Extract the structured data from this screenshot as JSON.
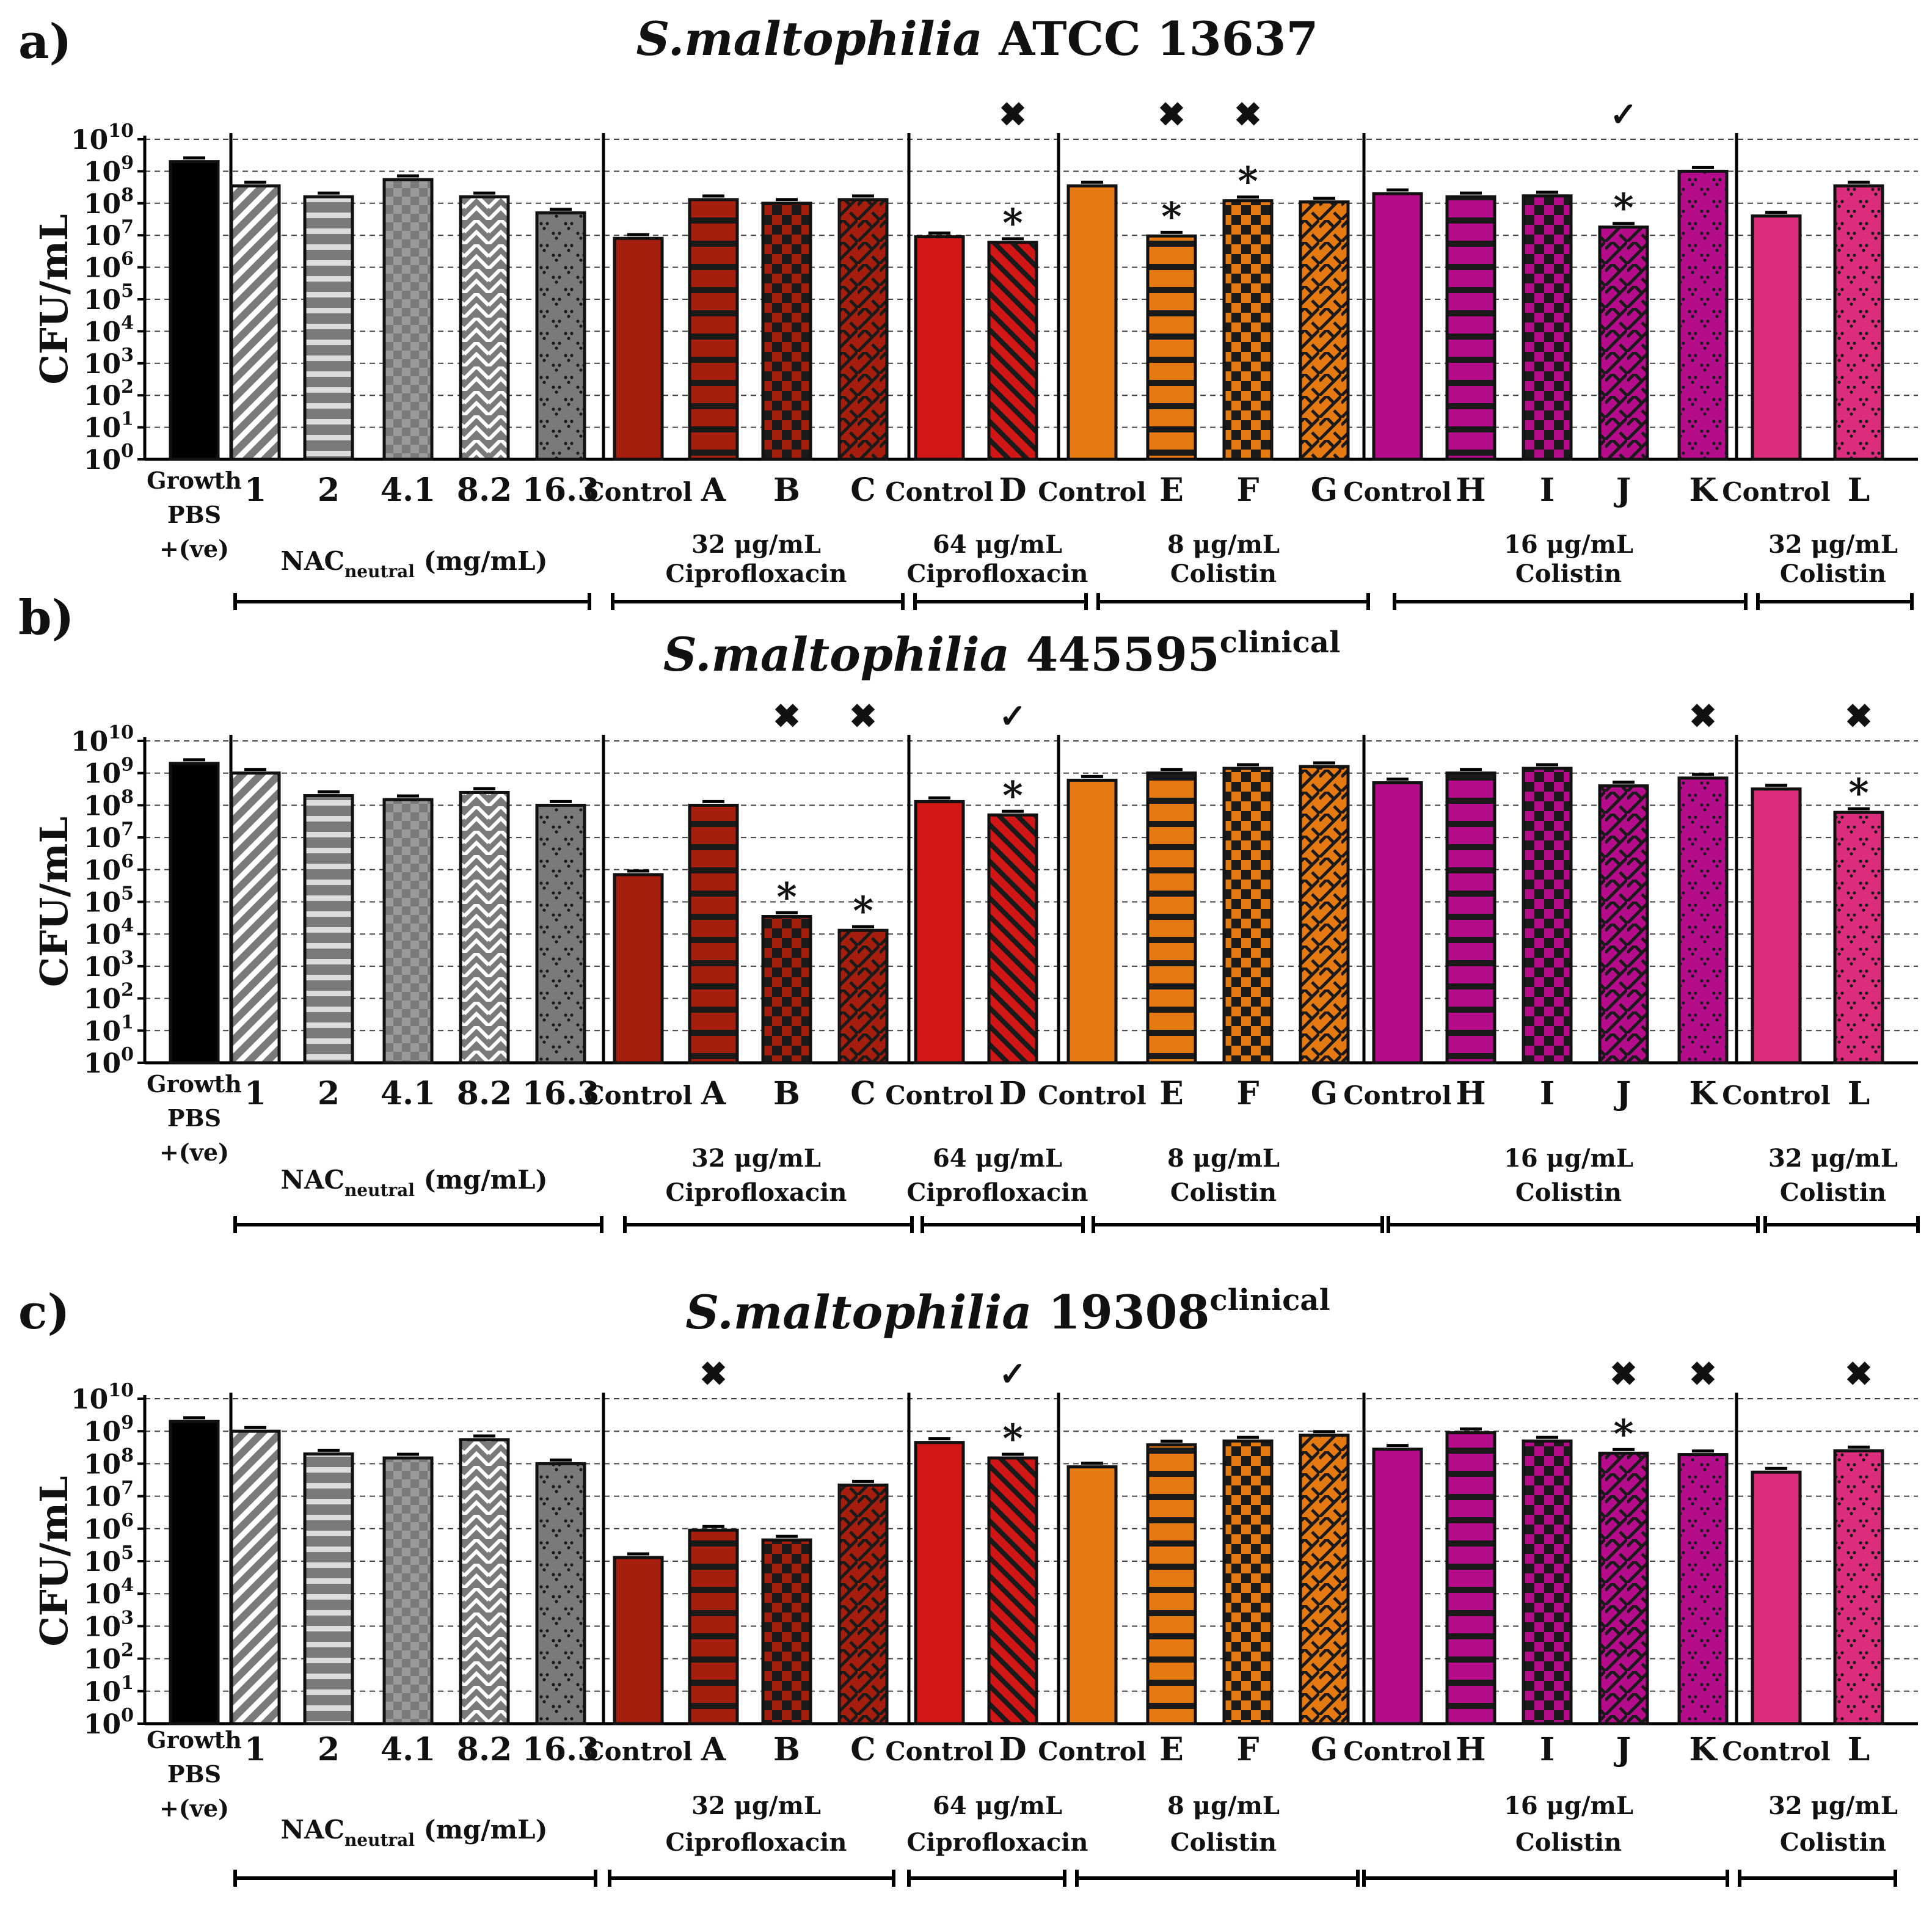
{
  "panels": [
    {
      "panel_label": "a)",
      "title_species": "S.maltophilia",
      "title_strain": "ATCC 13637",
      "title_sup": ""
    },
    {
      "panel_label": "b)",
      "title_species": "S.maltophilia",
      "title_strain": "445595",
      "title_sup": "clinical"
    },
    {
      "panel_label": "c)",
      "title_species": "S.maltophilia",
      "title_strain": "19308",
      "title_sup": "clinical"
    }
  ],
  "chart_data": [
    {
      "type": "bar",
      "ylabel": "CFU/mL",
      "yscale": "log10",
      "ylim": [
        1,
        10000000000
      ],
      "ytick_exponents": [
        0,
        1,
        2,
        3,
        4,
        5,
        6,
        7,
        8,
        9,
        10
      ],
      "ytick_base": "10",
      "categories": [
        "Growth PBS +(ve)",
        "1",
        "2",
        "4.1",
        "8.2",
        "16.3",
        "Control",
        "A",
        "B",
        "C",
        "Control",
        "D",
        "Control",
        "E",
        "F",
        "G",
        "Control",
        "H",
        "I",
        "J",
        "K",
        "Control",
        "L"
      ],
      "values": [
        2000000000,
        350000000,
        160000000,
        550000000,
        160000000,
        50000000,
        8000000,
        130000000,
        100000000,
        130000000,
        9000000,
        6000000,
        350000000,
        9500000,
        120000000,
        110000000,
        200000000,
        160000000,
        170000000,
        18000000,
        1000000000,
        40000000,
        350000000
      ],
      "significance_star": [
        11,
        13,
        14,
        19
      ],
      "markers": [
        {
          "index": 11,
          "symbol": "✖"
        },
        {
          "index": 13,
          "symbol": "✖"
        },
        {
          "index": 14,
          "symbol": "✖"
        },
        {
          "index": 19,
          "symbol": "✓"
        }
      ],
      "groups": [
        {
          "label_line1": "NAC",
          "label_sub": "neutral",
          "label_rest": " (mg/mL)",
          "label_line2": ""
        },
        {
          "label_line1": "32 μg/mL",
          "label_sub": "",
          "label_rest": "",
          "label_line2": "Ciprofloxacin"
        },
        {
          "label_line1": "64 μg/mL",
          "label_sub": "",
          "label_rest": "",
          "label_line2": "Ciprofloxacin"
        },
        {
          "label_line1": "8 μg/mL",
          "label_sub": "",
          "label_rest": "",
          "label_line2": "Colistin"
        },
        {
          "label_line1": "16 μg/mL",
          "label_sub": "",
          "label_rest": "",
          "label_line2": "Colistin"
        },
        {
          "label_line1": "32 μg/mL",
          "label_sub": "",
          "label_rest": "",
          "label_line2": "Colistin"
        }
      ]
    },
    {
      "type": "bar",
      "ylabel": "CFU/mL",
      "yscale": "log10",
      "ylim": [
        1,
        10000000000
      ],
      "ytick_exponents": [
        0,
        1,
        2,
        3,
        4,
        5,
        6,
        7,
        8,
        9,
        10
      ],
      "ytick_base": "10",
      "categories": [
        "Growth PBS +(ve)",
        "1",
        "2",
        "4.1",
        "8.2",
        "16.3",
        "Control",
        "A",
        "B",
        "C",
        "Control",
        "D",
        "Control",
        "E",
        "F",
        "G",
        "Control",
        "H",
        "I",
        "J",
        "K",
        "Control",
        "L"
      ],
      "values": [
        2000000000,
        1000000000,
        200000000,
        150000000,
        250000000,
        100000000,
        700000,
        100000000,
        35000,
        13000,
        130000000,
        50000000,
        600000000,
        1000000000,
        1400000000,
        1600000000,
        500000000,
        1000000000,
        1400000000,
        400000000,
        700000000,
        320000000,
        60000000
      ],
      "significance_star": [
        8,
        9,
        11,
        22
      ],
      "markers": [
        {
          "index": 8,
          "symbol": "✖"
        },
        {
          "index": 9,
          "symbol": "✖"
        },
        {
          "index": 11,
          "symbol": "✓"
        },
        {
          "index": 20,
          "symbol": "✖"
        },
        {
          "index": 22,
          "symbol": "✖"
        }
      ],
      "groups": [
        {
          "label_line1": "NAC",
          "label_sub": "neutral",
          "label_rest": " (mg/mL)",
          "label_line2": ""
        },
        {
          "label_line1": "32 μg/mL",
          "label_sub": "",
          "label_rest": "",
          "label_line2": "Ciprofloxacin"
        },
        {
          "label_line1": "64 μg/mL",
          "label_sub": "",
          "label_rest": "",
          "label_line2": "Ciprofloxacin"
        },
        {
          "label_line1": "8 μg/mL",
          "label_sub": "",
          "label_rest": "",
          "label_line2": "Colistin"
        },
        {
          "label_line1": "16 μg/mL",
          "label_sub": "",
          "label_rest": "",
          "label_line2": "Colistin"
        },
        {
          "label_line1": "32 μg/mL",
          "label_sub": "",
          "label_rest": "",
          "label_line2": "Colistin"
        }
      ]
    },
    {
      "type": "bar",
      "ylabel": "CFU/mL",
      "yscale": "log10",
      "ylim": [
        1,
        10000000000
      ],
      "ytick_exponents": [
        0,
        1,
        2,
        3,
        4,
        5,
        6,
        7,
        8,
        9,
        10
      ],
      "ytick_base": "10",
      "categories": [
        "Growth PBS +(ve)",
        "1",
        "2",
        "4.1",
        "8.2",
        "16.3",
        "Control",
        "A",
        "B",
        "C",
        "Control",
        "D",
        "Control",
        "E",
        "F",
        "G",
        "Control",
        "H",
        "I",
        "J",
        "K",
        "Control",
        "L"
      ],
      "values": [
        2000000000,
        1000000000,
        200000000,
        150000000,
        550000000,
        100000000,
        130000,
        900000,
        450000,
        22000000,
        450000000,
        150000000,
        80000000,
        380000000,
        500000000,
        750000000,
        280000000,
        900000000,
        500000000,
        210000000,
        190000000,
        55000000,
        250000000
      ],
      "significance_star": [
        11,
        19
      ],
      "markers": [
        {
          "index": 7,
          "symbol": "✖"
        },
        {
          "index": 11,
          "symbol": "✓"
        },
        {
          "index": 19,
          "symbol": "✖"
        },
        {
          "index": 20,
          "symbol": "✖"
        },
        {
          "index": 22,
          "symbol": "✖"
        }
      ],
      "groups": [
        {
          "label_line1": "NAC",
          "label_sub": "neutral",
          "label_rest": " (mg/mL)",
          "label_line2": ""
        },
        {
          "label_line1": "32 μg/mL",
          "label_sub": "",
          "label_rest": "",
          "label_line2": "Ciprofloxacin"
        },
        {
          "label_line1": "64 μg/mL",
          "label_sub": "",
          "label_rest": "",
          "label_line2": "Ciprofloxacin"
        },
        {
          "label_line1": "8 μg/mL",
          "label_sub": "",
          "label_rest": "",
          "label_line2": "Colistin"
        },
        {
          "label_line1": "16 μg/mL",
          "label_sub": "",
          "label_rest": "",
          "label_line2": "Colistin"
        },
        {
          "label_line1": "32 μg/mL",
          "label_sub": "",
          "label_rest": "",
          "label_line2": "Colistin"
        }
      ]
    }
  ],
  "colors": {
    "growth": "#000000",
    "nac": "#7a7a7a",
    "cipro32": "#a61e0e",
    "cipro64": "#d11616",
    "colistin8": "#e57912",
    "colistin16": "#b40c8a",
    "colistin32": "#dc2d7c",
    "grid": "#444444",
    "outline": "#111111"
  }
}
